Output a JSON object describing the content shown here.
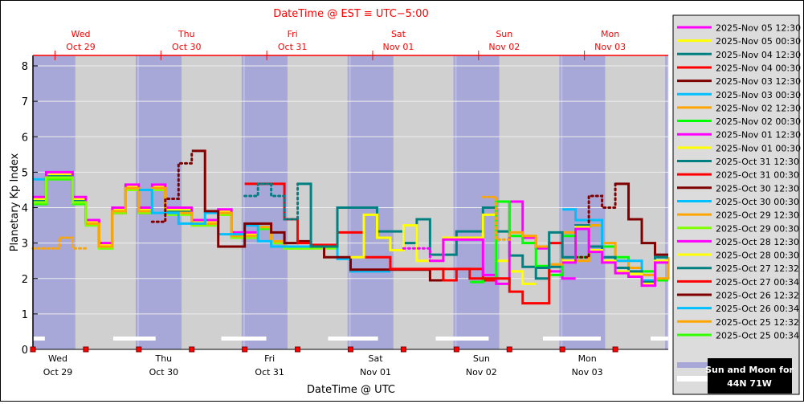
{
  "chart_data": {
    "type": "line",
    "step": true,
    "top_axis_title": "DateTime @ EST ≡ UTC−5:00",
    "xlabel": "DateTime @ UTC",
    "ylabel": "Planetary Kp Index",
    "ylim": [
      0,
      8.3
    ],
    "yticks": [
      0,
      1,
      2,
      3,
      4,
      5,
      6,
      7,
      8
    ],
    "xlim": [
      "2025-10-29 00:00",
      "2025-11-04 00:00"
    ],
    "x_step_hours": 3,
    "grid": true,
    "legend_position": "right",
    "bottom_ticks": [
      {
        "day": "Wed",
        "date": "Oct 29"
      },
      {
        "day": "Thu",
        "date": "Oct 30"
      },
      {
        "day": "Fri",
        "date": "Oct 31"
      },
      {
        "day": "Sat",
        "date": "Nov 01"
      },
      {
        "day": "Sun",
        "date": "Nov 02"
      },
      {
        "day": "Mon",
        "date": "Nov 03"
      }
    ],
    "top_ticks": [
      {
        "day": "Wed",
        "date": "Oct 29"
      },
      {
        "day": "Thu",
        "date": "Oct 30"
      },
      {
        "day": "Fri",
        "date": "Oct 31"
      },
      {
        "day": "Sat",
        "date": "Nov 01"
      },
      {
        "day": "Sun",
        "date": "Nov 02"
      },
      {
        "day": "Mon",
        "date": "Nov 03"
      }
    ],
    "night_intervals_utc_hours": [
      [
        0,
        9.6
      ],
      [
        23.3,
        33.7
      ],
      [
        47.3,
        57.7
      ],
      [
        71.3,
        81.7
      ],
      [
        95.3,
        105.7
      ],
      [
        119.3,
        129.7
      ],
      [
        143.3,
        144
      ]
    ],
    "moon_intervals_utc_hours": [
      [
        0,
        2.7
      ],
      [
        18.2,
        27.8
      ],
      [
        42.7,
        52.9
      ],
      [
        66.9,
        78.2
      ],
      [
        91.3,
        103.3
      ],
      [
        115.6,
        128.7
      ],
      [
        140,
        144
      ]
    ],
    "colors": {
      "night": "#a8a8d8",
      "day": "#d0d0d0",
      "moon": "#ffffff",
      "top_axis": "#ff0000"
    },
    "series": [
      {
        "name": "2025-Nov 05 12:30",
        "color": "#ff00ff",
        "start": "2025-11-03 00:00",
        "dotted": 0,
        "kp": [
          2.45,
          3.4,
          2.75,
          2.45,
          2.15,
          2.05,
          1.8,
          2.45
        ]
      },
      {
        "name": "2025-Nov 05 00:30",
        "color": "#ffff00",
        "start": "2025-11-03 00:00",
        "dotted": 0,
        "kp": [
          2.5,
          3.45,
          2.8,
          2.5,
          2.2,
          2.13,
          1.85,
          2.5
        ]
      },
      {
        "name": "2025-Nov 04 12:30",
        "color": "#008080",
        "start": "2025-11-02 18:00",
        "dotted": 0,
        "kp": [
          2.3,
          3.3,
          2.6,
          3.5,
          2.9,
          2.6,
          2.3,
          2.2,
          1.9,
          2.6
        ]
      },
      {
        "name": "2025-Nov 04 00:30",
        "color": "#ff0000",
        "start": "2025-11-01 18:00",
        "dotted": 0,
        "kp": [
          2.27,
          1.95,
          2.27,
          2.0,
          2.0,
          2.0,
          1.63,
          1.3,
          1.3,
          3.0
        ]
      },
      {
        "name": "2025-Nov 03 12:30",
        "color": "#800000",
        "start": "2025-11-03 03:00",
        "dotted": 3,
        "kp": [
          2.6,
          4.33,
          4.0,
          4.67,
          3.67,
          3.0,
          2.67
        ]
      },
      {
        "name": "2025-Nov 03 00:30",
        "color": "#00bfff",
        "start": "2025-11-03 00:00",
        "dotted": 0,
        "kp": [
          3.95,
          3.65,
          3.65,
          2.6,
          2.5,
          2.5,
          1.95,
          2.6
        ]
      },
      {
        "name": "2025-Nov 02 12:30",
        "color": "#ffa500",
        "start": "2025-11-02 06:00",
        "dotted": 2,
        "kp": [
          4.3,
          3.1,
          3.3,
          3.2,
          2.9,
          2.4,
          3.3,
          2.5,
          3.5,
          3.0,
          2.5,
          2.3,
          2.1,
          2.0,
          2.6
        ]
      },
      {
        "name": "2025-Nov 02 00:30",
        "color": "#00ff00",
        "start": "2025-11-02 03:00",
        "dotted": 0,
        "kp": [
          1.9,
          2.0,
          4.17,
          3.2,
          3.0,
          2.35,
          2.1,
          3.2,
          2.6,
          3.5,
          2.9,
          2.6,
          2.3,
          2.2,
          1.95
        ]
      },
      {
        "name": "2025-Nov 01 12:30",
        "color": "#ff00ff",
        "start": "2025-11-01 12:00",
        "dotted": 2,
        "kp": [
          2.85,
          2.85,
          2.5,
          3.1,
          3.1,
          3.1,
          2.1,
          1.85,
          4.17,
          3.15,
          2.85,
          2.2,
          2.0
        ]
      },
      {
        "name": "2025-Nov 01 00:30",
        "color": "#ffff00",
        "start": "2025-11-01 00:00",
        "dotted": 0,
        "kp": [
          2.6,
          3.8,
          3.15,
          2.8,
          3.5,
          2.5,
          2.5,
          3.15,
          3.15,
          3.15,
          3.8,
          2.5,
          2.2,
          1.85
        ]
      },
      {
        "name": "2025-Oct 31 12:30",
        "color": "#008080",
        "start": "2025-10-31 00:00",
        "dotted": 4,
        "kp": [
          4.33,
          4.67,
          4.33,
          3.67,
          4.67,
          2.9,
          2.9,
          4.0,
          4.0,
          4.0,
          3.33,
          3.33,
          3.0,
          3.67,
          2.67,
          2.67,
          3.33,
          3.33,
          4.0,
          3.33,
          2.65,
          2.33,
          2.0,
          2.33
        ]
      },
      {
        "name": "2025-Oct 31 00:30",
        "color": "#ff0000",
        "start": "2025-10-31 00:00",
        "dotted": 0,
        "kp": [
          4.67,
          4.67,
          4.67,
          3.67,
          3.0,
          2.95,
          2.95,
          3.3,
          3.3,
          2.6,
          2.6,
          2.27,
          2.27,
          2.27,
          2.27,
          2.27,
          2.27,
          2.27,
          1.95
        ]
      },
      {
        "name": "2025-Oct 30 12:30",
        "color": "#800000",
        "start": "2025-10-30 03:00",
        "dotted": 3,
        "kp": [
          3.6,
          4.25,
          5.25,
          5.6,
          3.9,
          2.9,
          2.9,
          3.55,
          3.55,
          3.3,
          3.0,
          3.05,
          2.9,
          2.6,
          2.6,
          2.25,
          2.25,
          2.25,
          2.25,
          2.25,
          2.25,
          1.95
        ]
      },
      {
        "name": "2025-Oct 30 00:30",
        "color": "#00bfff",
        "start": "2025-10-30 00:00",
        "dotted": 0,
        "kp": [
          4.5,
          3.85,
          3.85,
          3.55,
          3.55,
          3.85,
          3.25,
          3.25,
          3.5,
          3.05,
          2.9,
          2.9,
          2.9,
          2.9,
          2.9,
          2.55,
          2.2,
          2.2,
          2.2
        ]
      },
      {
        "name": "2025-Oct 29 12:30",
        "color": "#ffa500",
        "start": "2025-10-29 12:00",
        "dotted": 0,
        "kp": [
          3.55,
          2.9,
          3.9,
          4.55,
          3.9,
          4.55,
          3.85,
          3.85,
          3.55,
          3.55,
          3.85,
          3.2,
          3.2,
          3.45,
          3.05,
          2.9
        ]
      },
      {
        "name": "2025-Oct 29 00:30",
        "color": "#7fff00",
        "start": "2025-10-29 00:00",
        "dotted": 0,
        "kp": [
          4.15,
          4.85,
          4.85,
          4.15,
          3.5,
          2.85,
          3.85,
          4.5,
          3.85,
          4.5,
          3.8,
          3.8,
          3.5,
          3.5,
          3.8,
          3.15,
          3.15,
          3.45,
          3.0,
          2.85,
          2.85,
          2.85,
          2.85
        ]
      },
      {
        "name": "2025-Oct 28 12:30",
        "color": "#ff00ff",
        "start": "2025-10-29 00:00",
        "dotted": 0,
        "kp": [
          4.3,
          5.0,
          5.0,
          4.3,
          3.65,
          3.0,
          4.0,
          4.65,
          4.0,
          4.65,
          4.0,
          4.0,
          3.65,
          3.65,
          3.95,
          3.3,
          3.3
        ]
      },
      {
        "name": "2025-Oct 28 00:30",
        "color": "#ffff00",
        "start": "2025-10-29 00:00",
        "dotted": 0,
        "kp": [
          4.25,
          4.95,
          4.95,
          4.25,
          3.6,
          2.95,
          3.95,
          4.6,
          3.95,
          4.6,
          3.95,
          3.95,
          3.6,
          3.6,
          3.9,
          3.25,
          3.25
        ]
      },
      {
        "name": "2025-Oct 27 12:32",
        "color": "#008080",
        "start": "2025-10-29 00:00",
        "dotted": 0,
        "kp": [
          4.2,
          4.9,
          4.9,
          4.2,
          3.6,
          2.9,
          3.9,
          4.6,
          3.9,
          4.6,
          3.9,
          3.9,
          3.55,
          3.55,
          3.85,
          3.2
        ]
      },
      {
        "name": "2025-Oct 27 00:34",
        "color": "#ff0000",
        "start": "2025-10-29 00:00",
        "dotted": 0,
        "kp": [
          4.2,
          4.85,
          4.85,
          4.2,
          3.55,
          2.9,
          3.85,
          4.55,
          3.85
        ]
      },
      {
        "name": "2025-Oct 26 12:32",
        "color": "#800000",
        "start": "2025-10-29 00:00",
        "dotted": 0,
        "kp": [
          4.2,
          4.9,
          4.9,
          4.2,
          3.6
        ]
      },
      {
        "name": "2025-Oct 26 00:34",
        "color": "#00bfff",
        "start": "2025-10-29 00:00",
        "dotted": 0,
        "kp": [
          4.8,
          4.9,
          4.9,
          4.2,
          3.6,
          2.95
        ]
      },
      {
        "name": "2025-Oct 25 12:32",
        "color": "#ffa500",
        "start": "2025-10-29 00:00",
        "dotted": 4,
        "kp": [
          2.85,
          2.85,
          3.15,
          2.85
        ]
      },
      {
        "name": "2025-Oct 25 00:34",
        "color": "#33ff00",
        "start": "2025-10-29 00:00",
        "dotted": 0,
        "kp": [
          4.1,
          4.8,
          4.8,
          4.1,
          3.5,
          2.85,
          3.85,
          4.5,
          3.85,
          4.5,
          3.85,
          3.85,
          3.5,
          3.5,
          3.8,
          3.15,
          3.15,
          3.4,
          3.0,
          2.85,
          2.85
        ]
      }
    ],
    "sun_moon_label_line1": "Sun and Moon for",
    "sun_moon_label_line2": "44N 71W"
  }
}
